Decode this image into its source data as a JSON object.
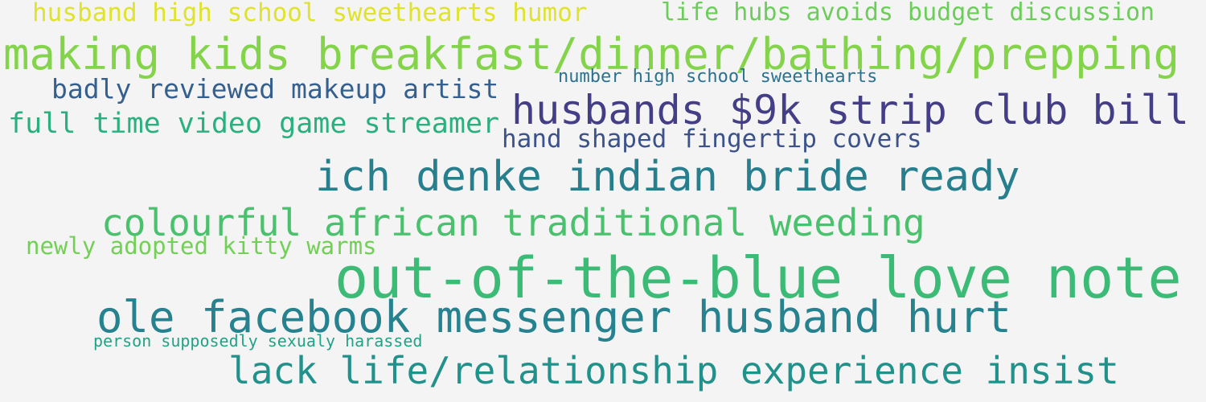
{
  "words": [
    {
      "text": "husband high school sweethearts humor",
      "color": "#dfe32d"
    },
    {
      "text": "life hubs avoids budget discussion",
      "color": "#6ccd5a"
    },
    {
      "text": "making kids breakfast/dinner/bathing/prepping",
      "color": "#84d44b"
    },
    {
      "text": "badly reviewed makeup artist",
      "color": "#355f8d"
    },
    {
      "text": "number high school sweethearts",
      "color": "#2c728e"
    },
    {
      "text": "husbands $9k strip club bill",
      "color": "#433e85"
    },
    {
      "text": "full time video game streamer",
      "color": "#2ab07f"
    },
    {
      "text": "hand shaped fingertip covers",
      "color": "#3b528b"
    },
    {
      "text": "ich denke indian bride ready",
      "color": "#277f8e"
    },
    {
      "text": "colourful african traditional weeding",
      "color": "#4ac16d"
    },
    {
      "text": "newly adopted kitty warms",
      "color": "#73d056"
    },
    {
      "text": "out-of-the-blue love note",
      "color": "#3bbb75"
    },
    {
      "text": "ole facebook messenger husband hurt",
      "color": "#26828e"
    },
    {
      "text": "person supposedly sexualy harassed",
      "color": "#20a386"
    },
    {
      "text": "lack life/relationship experience insist",
      "color": "#21918c"
    }
  ]
}
